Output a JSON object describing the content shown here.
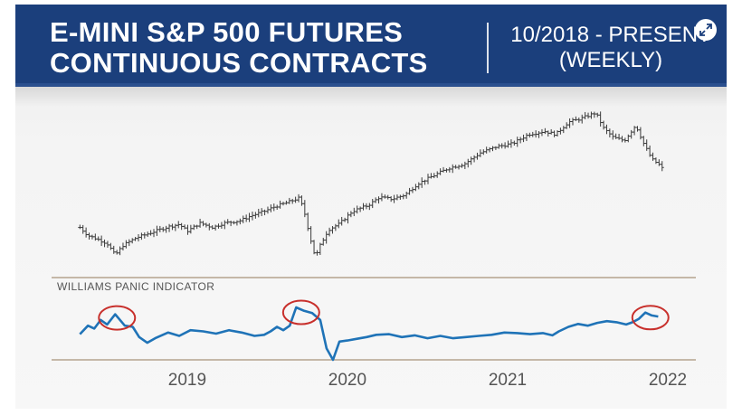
{
  "header": {
    "title_line1": "E-MINI S&P 500 FUTURES",
    "title_line2": "CONTINUOUS CONTRACTS",
    "period_line1": "10/2018 - PRESENT",
    "period_line2": "(WEEKLY)",
    "expand_icon": "expand-diagonal-arrows-icon"
  },
  "colors": {
    "banner": "#1b3f7c",
    "price_bars": "#3a3a3a",
    "indicator_line": "#1f73b7",
    "highlight_circles": "#c8302c",
    "separator": "#a8937a"
  },
  "chart_data": [
    {
      "type": "ohlc",
      "description_none": "",
      "x_labels": [
        "2019",
        "2020",
        "2021",
        "2022"
      ],
      "x_range": [
        2018.72,
        2022.42
      ],
      "y_range": [
        2150,
        4850
      ],
      "series": [
        {
          "values": [
            [
              2018.75,
              2890
            ],
            [
              2018.8,
              2760
            ],
            [
              2018.86,
              2700
            ],
            [
              2018.92,
              2630
            ],
            [
              2018.97,
              2440
            ],
            [
              2019.02,
              2600
            ],
            [
              2019.1,
              2720
            ],
            [
              2019.2,
              2810
            ],
            [
              2019.3,
              2900
            ],
            [
              2019.37,
              2940
            ],
            [
              2019.42,
              2830
            ],
            [
              2019.5,
              2960
            ],
            [
              2019.58,
              2890
            ],
            [
              2019.65,
              2960
            ],
            [
              2019.75,
              3000
            ],
            [
              2019.82,
              3080
            ],
            [
              2019.9,
              3150
            ],
            [
              2019.97,
              3230
            ],
            [
              2020.05,
              3300
            ],
            [
              2020.12,
              3370
            ],
            [
              2020.15,
              3150
            ],
            [
              2020.19,
              2700
            ],
            [
              2020.22,
              2400
            ],
            [
              2020.25,
              2600
            ],
            [
              2020.3,
              2850
            ],
            [
              2020.37,
              2950
            ],
            [
              2020.45,
              3150
            ],
            [
              2020.55,
              3250
            ],
            [
              2020.62,
              3380
            ],
            [
              2020.7,
              3350
            ],
            [
              2020.78,
              3420
            ],
            [
              2020.86,
              3600
            ],
            [
              2020.95,
              3720
            ],
            [
              2021.05,
              3850
            ],
            [
              2021.15,
              3920
            ],
            [
              2021.25,
              4100
            ],
            [
              2021.35,
              4200
            ],
            [
              2021.45,
              4250
            ],
            [
              2021.55,
              4400
            ],
            [
              2021.65,
              4450
            ],
            [
              2021.72,
              4400
            ],
            [
              2021.8,
              4600
            ],
            [
              2021.87,
              4650
            ],
            [
              2021.92,
              4700
            ],
            [
              2021.97,
              4750
            ],
            [
              2022.02,
              4500
            ],
            [
              2022.08,
              4350
            ],
            [
              2022.15,
              4300
            ],
            [
              2022.22,
              4550
            ],
            [
              2022.27,
              4250
            ],
            [
              2022.32,
              4000
            ],
            [
              2022.37,
              3900
            ],
            [
              2022.4,
              3800
            ]
          ]
        }
      ]
    },
    {
      "type": "line",
      "title": "WILLIAMS PANIC INDICATOR",
      "x_labels": [
        "2019",
        "2020",
        "2021",
        "2022"
      ],
      "x_range": [
        2018.72,
        2022.42
      ],
      "y_range": [
        0,
        100
      ],
      "series": [
        {
          "values": [
            [
              2018.75,
              45
            ],
            [
              2018.8,
              60
            ],
            [
              2018.84,
              55
            ],
            [
              2018.88,
              70
            ],
            [
              2018.92,
              62
            ],
            [
              2018.97,
              80
            ],
            [
              2019.03,
              60
            ],
            [
              2019.08,
              58
            ],
            [
              2019.12,
              40
            ],
            [
              2019.17,
              30
            ],
            [
              2019.22,
              38
            ],
            [
              2019.3,
              48
            ],
            [
              2019.37,
              42
            ],
            [
              2019.44,
              52
            ],
            [
              2019.52,
              50
            ],
            [
              2019.6,
              46
            ],
            [
              2019.68,
              52
            ],
            [
              2019.76,
              48
            ],
            [
              2019.84,
              42
            ],
            [
              2019.9,
              44
            ],
            [
              2019.94,
              50
            ],
            [
              2019.98,
              58
            ],
            [
              2020.02,
              52
            ],
            [
              2020.06,
              60
            ],
            [
              2020.1,
              92
            ],
            [
              2020.15,
              86
            ],
            [
              2020.2,
              82
            ],
            [
              2020.25,
              70
            ],
            [
              2020.29,
              20
            ],
            [
              2020.33,
              0
            ],
            [
              2020.37,
              32
            ],
            [
              2020.42,
              34
            ],
            [
              2020.48,
              37
            ],
            [
              2020.54,
              40
            ],
            [
              2020.6,
              44
            ],
            [
              2020.68,
              45
            ],
            [
              2020.76,
              40
            ],
            [
              2020.84,
              43
            ],
            [
              2020.92,
              38
            ],
            [
              2021.0,
              42
            ],
            [
              2021.08,
              38
            ],
            [
              2021.16,
              40
            ],
            [
              2021.24,
              42
            ],
            [
              2021.32,
              44
            ],
            [
              2021.4,
              48
            ],
            [
              2021.48,
              47
            ],
            [
              2021.56,
              45
            ],
            [
              2021.64,
              47
            ],
            [
              2021.7,
              43
            ],
            [
              2021.74,
              50
            ],
            [
              2021.8,
              58
            ],
            [
              2021.86,
              63
            ],
            [
              2021.92,
              60
            ],
            [
              2021.98,
              65
            ],
            [
              2022.04,
              68
            ],
            [
              2022.1,
              66
            ],
            [
              2022.16,
              62
            ],
            [
              2022.2,
              66
            ],
            [
              2022.24,
              72
            ],
            [
              2022.28,
              83
            ],
            [
              2022.32,
              78
            ],
            [
              2022.36,
              76
            ]
          ]
        }
      ],
      "highlighted_peaks": [
        2018.97,
        2020.12,
        2022.3
      ]
    }
  ]
}
